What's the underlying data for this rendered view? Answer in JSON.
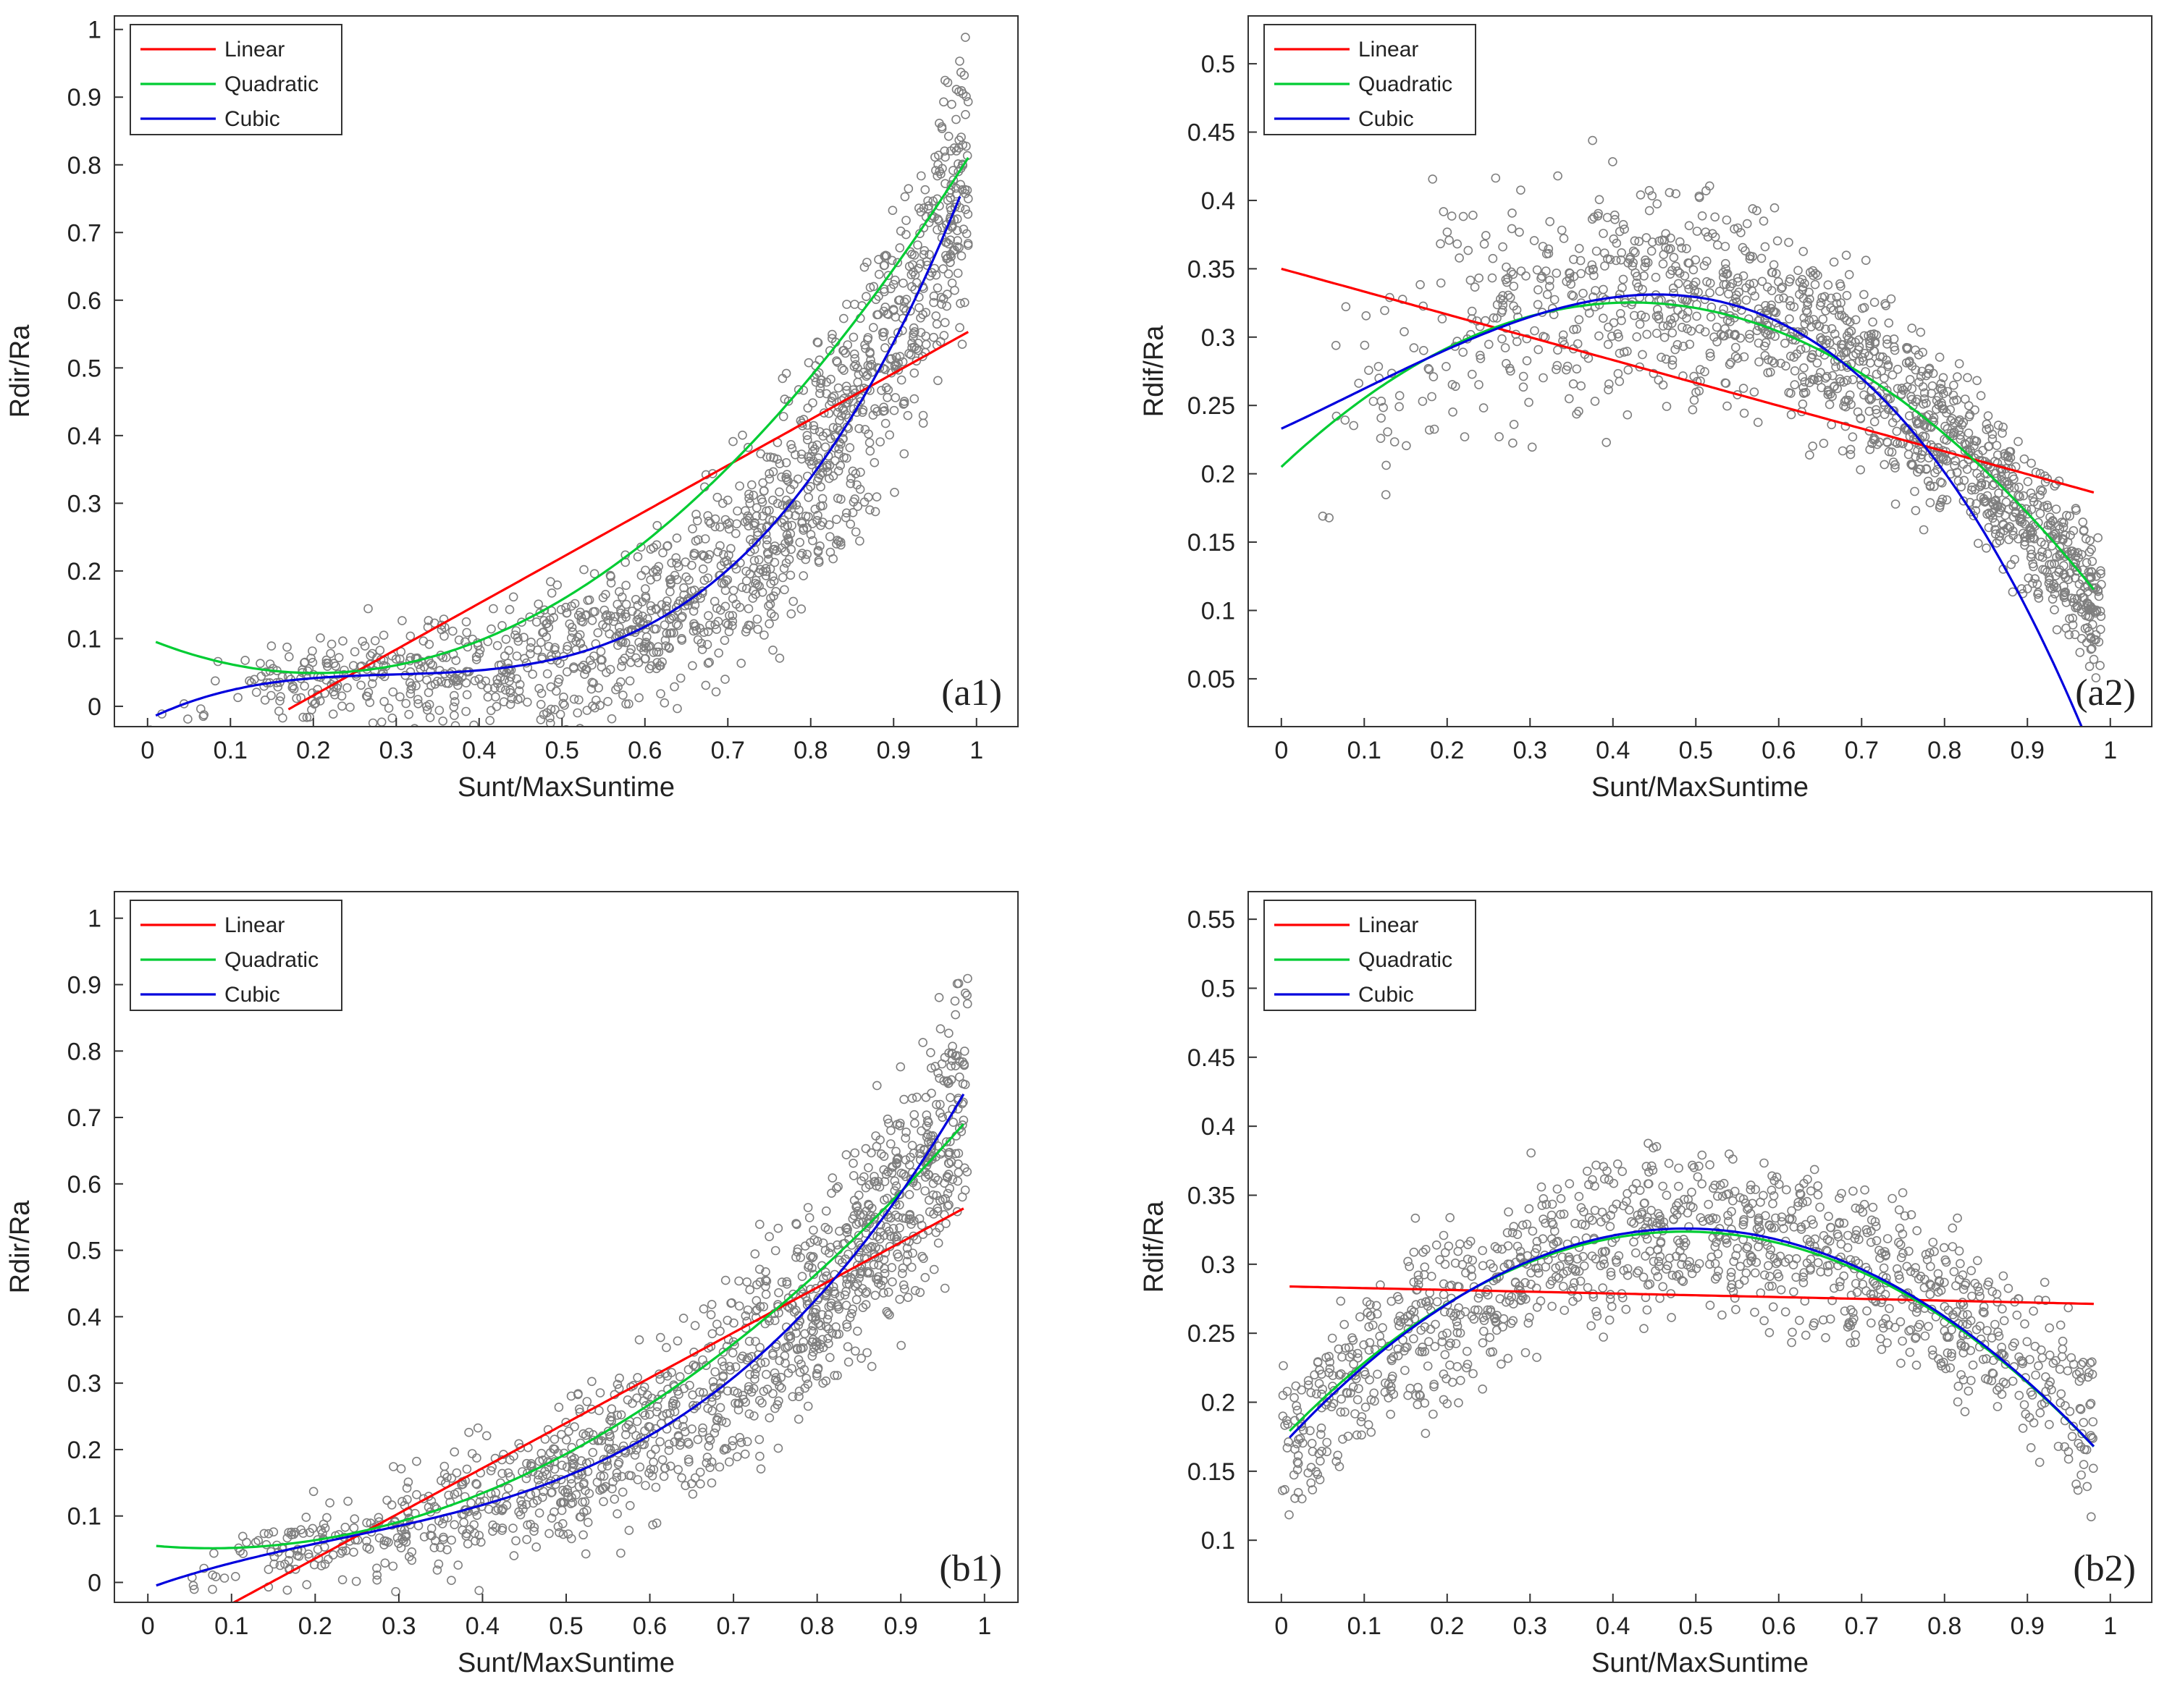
{
  "figure": {
    "background": "#ffffff"
  },
  "colors": {
    "points": "#7f7f7f",
    "linear": "#ff0000",
    "quadratic": "#00cc33",
    "cubic": "#0000dd",
    "axis": "#333333"
  },
  "legend_labels": [
    "Linear",
    "Quadratic",
    "Cubic"
  ],
  "chart_data": [
    {
      "id": "a1",
      "type": "scatter",
      "panel_label": "(a1)",
      "xlabel": "Sunt/MaxSuntime",
      "ylabel": "Rdir/Ra",
      "xlim": [
        -0.04,
        1.05
      ],
      "ylim": [
        -0.03,
        1.02
      ],
      "xticks": [
        0,
        0.1,
        0.2,
        0.3,
        0.4,
        0.5,
        0.6,
        0.7,
        0.8,
        0.9,
        1
      ],
      "xtick_labels": [
        "0",
        "0.1",
        "0.2",
        "0.3",
        "0.4",
        "0.5",
        "0.6",
        "0.7",
        "0.8",
        "0.9",
        "1"
      ],
      "yticks": [
        0,
        0.1,
        0.2,
        0.3,
        0.4,
        0.5,
        0.6,
        0.7,
        0.8,
        0.9,
        1
      ],
      "ytick_labels": [
        "0",
        "0.1",
        "0.2",
        "0.3",
        "0.4",
        "0.5",
        "0.6",
        "0.7",
        "0.8",
        "0.9",
        "1"
      ],
      "legend": "top-left",
      "scatter": {
        "samples": 1400,
        "seed": 11,
        "density": "increasing",
        "trend": [
          -0.0195,
          0.6,
          -1.9,
          2.135
        ],
        "spread": [
          0.02,
          0.17
        ],
        "x_range": [
          0.0,
          0.99
        ]
      },
      "series": [
        {
          "name": "Linear",
          "coeffs": [
            -0.12,
            0.68
          ],
          "x_range": [
            0.17,
            0.99
          ]
        },
        {
          "name": "Quadratic",
          "coeffs": [
            0.1,
            -0.5,
            1.23
          ],
          "x_range": [
            0.01,
            0.99
          ]
        },
        {
          "name": "Cubic",
          "coeffs": [
            -0.0195,
            0.6,
            -1.9,
            2.135
          ],
          "x_range": [
            0.01,
            0.98
          ]
        }
      ]
    },
    {
      "id": "a2",
      "type": "scatter",
      "panel_label": "(a2)",
      "xlabel": "Sunt/MaxSuntime",
      "ylabel": "Rdif/Ra",
      "xlim": [
        -0.04,
        1.05
      ],
      "ylim": [
        0.015,
        0.535
      ],
      "xticks": [
        0,
        0.1,
        0.2,
        0.3,
        0.4,
        0.5,
        0.6,
        0.7,
        0.8,
        0.9,
        1
      ],
      "xtick_labels": [
        "0",
        "0.1",
        "0.2",
        "0.3",
        "0.4",
        "0.5",
        "0.6",
        "0.7",
        "0.8",
        "0.9",
        "1"
      ],
      "yticks": [
        0.05,
        0.1,
        0.15,
        0.2,
        0.25,
        0.3,
        0.35,
        0.4,
        0.45,
        0.5
      ],
      "ytick_labels": [
        "0.05",
        "0.1",
        "0.15",
        "0.2",
        "0.25",
        "0.3",
        "0.35",
        "0.4",
        "0.45",
        "0.5"
      ],
      "legend": "top-left",
      "scatter": {
        "samples": 1400,
        "seed": 23,
        "density": "increasing",
        "trend": [
          0.21,
          0.6,
          -0.72,
          0
        ],
        "spread": [
          0.09,
          0.04
        ],
        "x_range": [
          0.0,
          0.99
        ]
      },
      "series": [
        {
          "name": "Linear",
          "coeffs": [
            0.35,
            -0.167
          ],
          "x_range": [
            0.0,
            0.98
          ]
        },
        {
          "name": "Quadratic",
          "coeffs": [
            0.205,
            0.57,
            -0.675
          ],
          "x_range": [
            0.0,
            0.98
          ]
        },
        {
          "name": "Cubic",
          "coeffs": [
            0.233,
            0.28,
            0.2,
            -0.75
          ],
          "x_range": [
            0.0,
            0.98
          ]
        }
      ]
    },
    {
      "id": "b1",
      "type": "scatter",
      "panel_label": "(b1)",
      "xlabel": "Sunt/MaxSuntime",
      "ylabel": "Rdir/Ra",
      "xlim": [
        -0.04,
        1.04
      ],
      "ylim": [
        -0.03,
        1.04
      ],
      "xticks": [
        0,
        0.1,
        0.2,
        0.3,
        0.4,
        0.5,
        0.6,
        0.7,
        0.8,
        0.9,
        1
      ],
      "xtick_labels": [
        "0",
        "0.1",
        "0.2",
        "0.3",
        "0.4",
        "0.5",
        "0.6",
        "0.7",
        "0.8",
        "0.9",
        "1"
      ],
      "yticks": [
        0,
        0.1,
        0.2,
        0.3,
        0.4,
        0.5,
        0.6,
        0.7,
        0.8,
        0.9,
        1
      ],
      "ytick_labels": [
        "0",
        "0.1",
        "0.2",
        "0.3",
        "0.4",
        "0.5",
        "0.6",
        "0.7",
        "0.8",
        "0.9",
        "1"
      ],
      "legend": "top-left",
      "scatter": {
        "samples": 1300,
        "seed": 37,
        "density": "increasing",
        "trend": [
          -0.009,
          0.45,
          -0.8,
          1.15
        ],
        "spread": [
          0.025,
          0.16
        ],
        "x_range": [
          0.0,
          0.98
        ]
      },
      "series": [
        {
          "name": "Linear",
          "coeffs": [
            -0.1,
            0.68
          ],
          "x_range": [
            0.07,
            0.975
          ]
        },
        {
          "name": "Quadratic",
          "coeffs": [
            0.056,
            -0.12,
            0.79
          ],
          "x_range": [
            0.01,
            0.975
          ]
        },
        {
          "name": "Cubic",
          "coeffs": [
            -0.009,
            0.45,
            -0.8,
            1.15
          ],
          "x_range": [
            0.01,
            0.975
          ]
        }
      ]
    },
    {
      "id": "b2",
      "type": "scatter",
      "panel_label": "(b2)",
      "xlabel": "Sunt/MaxSuntime",
      "ylabel": "Rdif/Ra",
      "xlim": [
        -0.04,
        1.05
      ],
      "ylim": [
        0.055,
        0.57
      ],
      "xticks": [
        0,
        0.1,
        0.2,
        0.3,
        0.4,
        0.5,
        0.6,
        0.7,
        0.8,
        0.9,
        1
      ],
      "xtick_labels": [
        "0",
        "0.1",
        "0.2",
        "0.3",
        "0.4",
        "0.5",
        "0.6",
        "0.7",
        "0.8",
        "0.9",
        "1"
      ],
      "yticks": [
        0.1,
        0.15,
        0.2,
        0.25,
        0.3,
        0.35,
        0.4,
        0.45,
        0.5,
        0.55
      ],
      "ytick_labels": [
        "0.1",
        "0.15",
        "0.2",
        "0.25",
        "0.3",
        "0.35",
        "0.4",
        "0.45",
        "0.5",
        "0.55"
      ],
      "legend": "top-left",
      "scatter": {
        "samples": 1200,
        "seed": 53,
        "density": "uniform",
        "trend": [
          0.17,
          0.62,
          -0.62,
          0
        ],
        "spread": [
          0.05,
          0.055
        ],
        "x_range": [
          0.0,
          0.98
        ]
      },
      "series": [
        {
          "name": "Linear",
          "coeffs": [
            0.284,
            -0.013
          ],
          "x_range": [
            0.01,
            0.98
          ]
        },
        {
          "name": "Quadratic",
          "coeffs": [
            0.173,
            0.62,
            -0.638
          ],
          "x_range": [
            0.01,
            0.98
          ]
        },
        {
          "name": "Cubic",
          "coeffs": [
            0.168,
            0.65,
            -0.675,
            0.012
          ],
          "x_range": [
            0.01,
            0.98
          ]
        }
      ]
    }
  ]
}
